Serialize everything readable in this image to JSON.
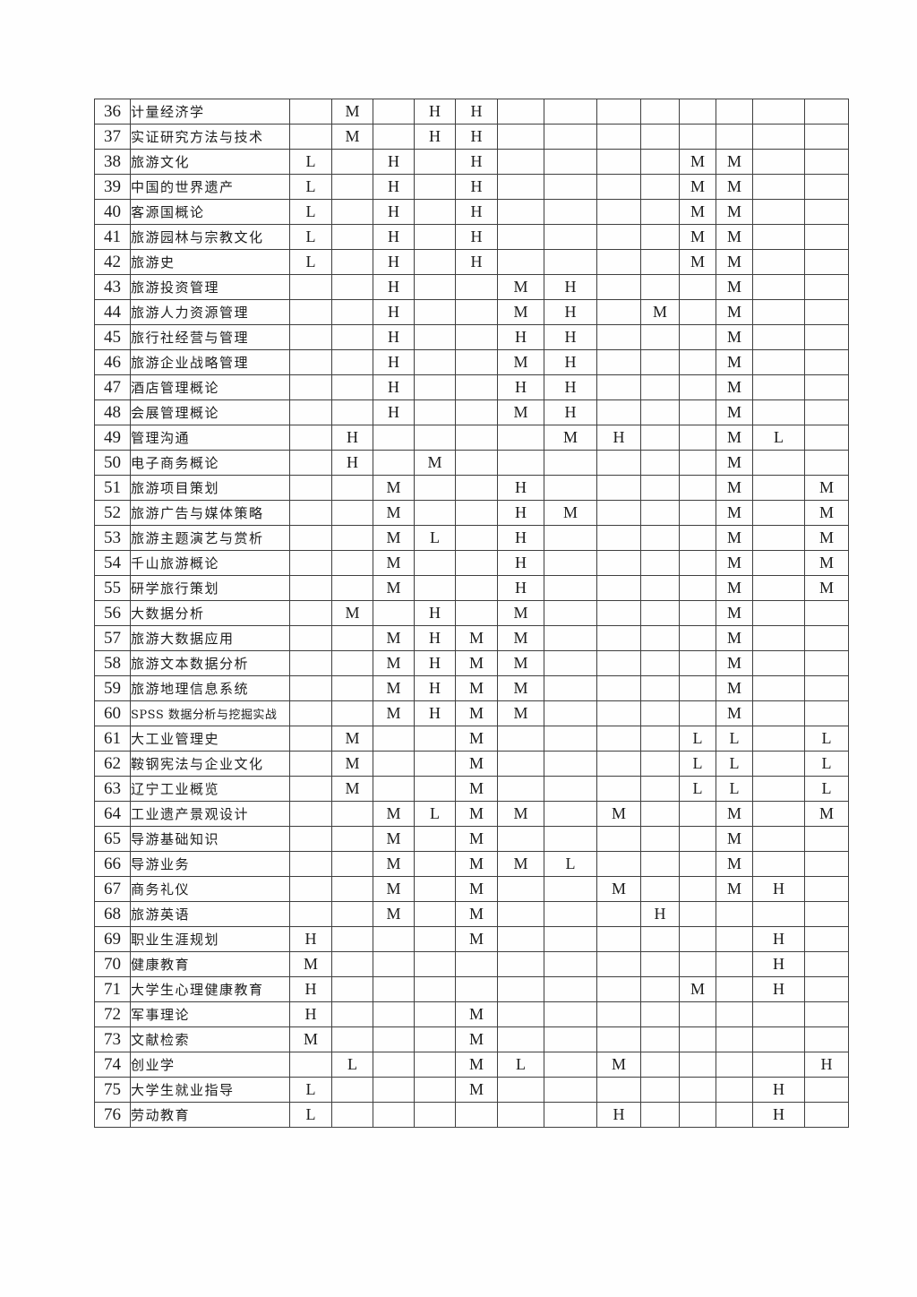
{
  "page": {
    "background_color": "#fefefe",
    "text_color": "#1c1c1c",
    "grid_color": "#3f3f3f"
  },
  "table": {
    "description": "course-outcome-matrix-continuation",
    "value_column_count": 13,
    "levels_used": [
      "H",
      "M",
      "L"
    ],
    "rows": [
      {
        "no": "36",
        "name": "计量经济学",
        "cells": [
          "",
          "M",
          "",
          "H",
          "H",
          "",
          "",
          "",
          "",
          "",
          "",
          "",
          ""
        ]
      },
      {
        "no": "37",
        "name": "实证研究方法与技术",
        "cells": [
          "",
          "M",
          "",
          "H",
          "H",
          "",
          "",
          "",
          "",
          "",
          "",
          "",
          ""
        ]
      },
      {
        "no": "38",
        "name": "旅游文化",
        "cells": [
          "L",
          "",
          "H",
          "",
          "H",
          "",
          "",
          "",
          "",
          "M",
          "M",
          "",
          ""
        ]
      },
      {
        "no": "39",
        "name": "中国的世界遗产",
        "cells": [
          "L",
          "",
          "H",
          "",
          "H",
          "",
          "",
          "",
          "",
          "M",
          "M",
          "",
          ""
        ]
      },
      {
        "no": "40",
        "name": "客源国概论",
        "cells": [
          "L",
          "",
          "H",
          "",
          "H",
          "",
          "",
          "",
          "",
          "M",
          "M",
          "",
          ""
        ]
      },
      {
        "no": "41",
        "name": "旅游园林与宗教文化",
        "cells": [
          "L",
          "",
          "H",
          "",
          "H",
          "",
          "",
          "",
          "",
          "M",
          "M",
          "",
          ""
        ]
      },
      {
        "no": "42",
        "name": "旅游史",
        "cells": [
          "L",
          "",
          "H",
          "",
          "H",
          "",
          "",
          "",
          "",
          "M",
          "M",
          "",
          ""
        ]
      },
      {
        "no": "43",
        "name": "旅游投资管理",
        "cells": [
          "",
          "",
          "H",
          "",
          "",
          "M",
          "H",
          "",
          "",
          "",
          "M",
          "",
          ""
        ]
      },
      {
        "no": "44",
        "name": "旅游人力资源管理",
        "cells": [
          "",
          "",
          "H",
          "",
          "",
          "M",
          "H",
          "",
          "M",
          "",
          "M",
          "",
          ""
        ]
      },
      {
        "no": "45",
        "name": "旅行社经营与管理",
        "cells": [
          "",
          "",
          "H",
          "",
          "",
          "H",
          "H",
          "",
          "",
          "",
          "M",
          "",
          ""
        ]
      },
      {
        "no": "46",
        "name": "旅游企业战略管理",
        "cells": [
          "",
          "",
          "H",
          "",
          "",
          "M",
          "H",
          "",
          "",
          "",
          "M",
          "",
          ""
        ]
      },
      {
        "no": "47",
        "name": "酒店管理概论",
        "cells": [
          "",
          "",
          "H",
          "",
          "",
          "H",
          "H",
          "",
          "",
          "",
          "M",
          "",
          ""
        ]
      },
      {
        "no": "48",
        "name": "会展管理概论",
        "cells": [
          "",
          "",
          "H",
          "",
          "",
          "M",
          "H",
          "",
          "",
          "",
          "M",
          "",
          ""
        ]
      },
      {
        "no": "49",
        "name": "管理沟通",
        "cells": [
          "",
          "H",
          "",
          "",
          "",
          "",
          "M",
          "H",
          "",
          "",
          "M",
          "L",
          ""
        ]
      },
      {
        "no": "50",
        "name": "电子商务概论",
        "cells": [
          "",
          "H",
          "",
          "M",
          "",
          "",
          "",
          "",
          "",
          "",
          "M",
          "",
          ""
        ]
      },
      {
        "no": "51",
        "name": "旅游项目策划",
        "cells": [
          "",
          "",
          "M",
          "",
          "",
          "H",
          "",
          "",
          "",
          "",
          "M",
          "",
          "M"
        ]
      },
      {
        "no": "52",
        "name": "旅游广告与媒体策略",
        "cells": [
          "",
          "",
          "M",
          "",
          "",
          "H",
          "M",
          "",
          "",
          "",
          "M",
          "",
          "M"
        ]
      },
      {
        "no": "53",
        "name": "旅游主题演艺与赏析",
        "cells": [
          "",
          "",
          "M",
          "L",
          "",
          "H",
          "",
          "",
          "",
          "",
          "M",
          "",
          "M"
        ]
      },
      {
        "no": "54",
        "name": "千山旅游概论",
        "cells": [
          "",
          "",
          "M",
          "",
          "",
          "H",
          "",
          "",
          "",
          "",
          "M",
          "",
          "M"
        ]
      },
      {
        "no": "55",
        "name": "研学旅行策划",
        "cells": [
          "",
          "",
          "M",
          "",
          "",
          "H",
          "",
          "",
          "",
          "",
          "M",
          "",
          "M"
        ]
      },
      {
        "no": "56",
        "name": "大数据分析",
        "cells": [
          "",
          "M",
          "",
          "H",
          "",
          "M",
          "",
          "",
          "",
          "",
          "M",
          "",
          ""
        ]
      },
      {
        "no": "57",
        "name": "旅游大数据应用",
        "cells": [
          "",
          "",
          "M",
          "H",
          "M",
          "M",
          "",
          "",
          "",
          "",
          "M",
          "",
          ""
        ]
      },
      {
        "no": "58",
        "name": "旅游文本数据分析",
        "cells": [
          "",
          "",
          "M",
          "H",
          "M",
          "M",
          "",
          "",
          "",
          "",
          "M",
          "",
          ""
        ]
      },
      {
        "no": "59",
        "name": "旅游地理信息系统",
        "cells": [
          "",
          "",
          "M",
          "H",
          "M",
          "M",
          "",
          "",
          "",
          "",
          "M",
          "",
          ""
        ]
      },
      {
        "no": "60",
        "name": "SPSS 数据分析与挖掘实战",
        "cells": [
          "",
          "",
          "M",
          "H",
          "M",
          "M",
          "",
          "",
          "",
          "",
          "M",
          "",
          ""
        ]
      },
      {
        "no": "61",
        "name": "大工业管理史",
        "cells": [
          "",
          "M",
          "",
          "",
          "M",
          "",
          "",
          "",
          "",
          "L",
          "L",
          "",
          "L"
        ]
      },
      {
        "no": "62",
        "name": "鞍钢宪法与企业文化",
        "cells": [
          "",
          "M",
          "",
          "",
          "M",
          "",
          "",
          "",
          "",
          "L",
          "L",
          "",
          "L"
        ]
      },
      {
        "no": "63",
        "name": "辽宁工业概览",
        "cells": [
          "",
          "M",
          "",
          "",
          "M",
          "",
          "",
          "",
          "",
          "L",
          "L",
          "",
          "L"
        ]
      },
      {
        "no": "64",
        "name": "工业遗产景观设计",
        "cells": [
          "",
          "",
          "M",
          "L",
          "M",
          "M",
          "",
          "M",
          "",
          "",
          "M",
          "",
          "M"
        ]
      },
      {
        "no": "65",
        "name": "导游基础知识",
        "cells": [
          "",
          "",
          "M",
          "",
          "M",
          "",
          "",
          "",
          "",
          "",
          "M",
          "",
          ""
        ]
      },
      {
        "no": "66",
        "name": "导游业务",
        "cells": [
          "",
          "",
          "M",
          "",
          "M",
          "M",
          "L",
          "",
          "",
          "",
          "M",
          "",
          ""
        ]
      },
      {
        "no": "67",
        "name": "商务礼仪",
        "cells": [
          "",
          "",
          "M",
          "",
          "M",
          "",
          "",
          "M",
          "",
          "",
          "M",
          "H",
          ""
        ]
      },
      {
        "no": "68",
        "name": "旅游英语",
        "cells": [
          "",
          "",
          "M",
          "",
          "M",
          "",
          "",
          "",
          "H",
          "",
          "",
          "",
          ""
        ]
      },
      {
        "no": "69",
        "name": "职业生涯规划",
        "cells": [
          "H",
          "",
          "",
          "",
          "M",
          "",
          "",
          "",
          "",
          "",
          "",
          "H",
          ""
        ]
      },
      {
        "no": "70",
        "name": "健康教育",
        "cells": [
          "M",
          "",
          "",
          "",
          "",
          "",
          "",
          "",
          "",
          "",
          "",
          "H",
          ""
        ]
      },
      {
        "no": "71",
        "name": "大学生心理健康教育",
        "cells": [
          "H",
          "",
          "",
          "",
          "",
          "",
          "",
          "",
          "",
          "M",
          "",
          "H",
          ""
        ]
      },
      {
        "no": "72",
        "name": "军事理论",
        "cells": [
          "H",
          "",
          "",
          "",
          "M",
          "",
          "",
          "",
          "",
          "",
          "",
          "",
          ""
        ]
      },
      {
        "no": "73",
        "name": "文献检索",
        "cells": [
          "M",
          "",
          "",
          "",
          "M",
          "",
          "",
          "",
          "",
          "",
          "",
          "",
          ""
        ]
      },
      {
        "no": "74",
        "name": "创业学",
        "cells": [
          "",
          "L",
          "",
          "",
          "M",
          "L",
          "",
          "M",
          "",
          "",
          "",
          "",
          "H"
        ]
      },
      {
        "no": "75",
        "name": "大学生就业指导",
        "cells": [
          "L",
          "",
          "",
          "",
          "M",
          "",
          "",
          "",
          "",
          "",
          "",
          "H",
          ""
        ]
      },
      {
        "no": "76",
        "name": "劳动教育",
        "cells": [
          "L",
          "",
          "",
          "",
          "",
          "",
          "",
          "H",
          "",
          "",
          "",
          "H",
          ""
        ]
      }
    ]
  }
}
